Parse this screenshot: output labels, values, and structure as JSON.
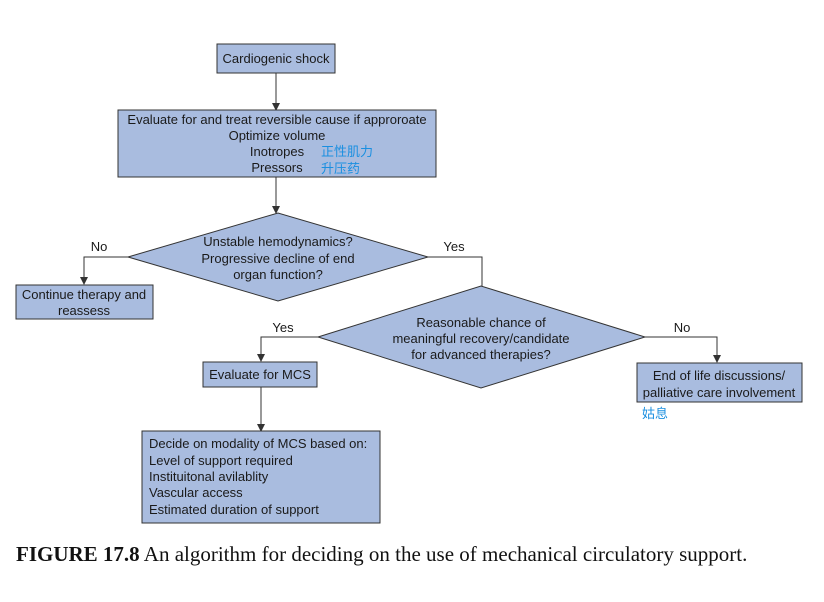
{
  "nodes": {
    "start": {
      "text": "Cardiogenic shock"
    },
    "evaluate": {
      "lines": [
        "Evaluate for and treat reversible cause if approroate",
        "Optimize volume",
        "Inotropes",
        "Pressors"
      ],
      "annotations": [
        "正性肌力",
        "升压药"
      ]
    },
    "decision1": {
      "lines": [
        "Unstable hemodynamics?",
        "Progressive decline of end",
        "organ function?"
      ]
    },
    "continue": {
      "lines": [
        "Continue therapy and",
        "reassess"
      ]
    },
    "decision2": {
      "lines": [
        "Reasonable chance of",
        "meaningful recovery/candidate",
        "for advanced therapies?"
      ]
    },
    "mcs": {
      "text": "Evaluate for MCS"
    },
    "eol": {
      "lines": [
        "End of life discussions/",
        "palliative care involvement"
      ],
      "annotation": "姑息"
    },
    "modality": {
      "lines": [
        "Decide on modality of MCS based on:",
        "Level of support required",
        "Instituitonal avilablity",
        "Vascular access",
        "Estimated duration of support"
      ]
    }
  },
  "edge_labels": {
    "d1_no": "No",
    "d1_yes": "Yes",
    "d2_yes": "Yes",
    "d2_no": "No"
  },
  "caption": {
    "label": "FIGURE 17.8",
    "text": " An algorithm for deciding on the use of mechanical circulatory support."
  },
  "colors": {
    "box_fill": "#a9bcdf",
    "stroke": "#333333",
    "annotation": "#1a8fe0"
  }
}
